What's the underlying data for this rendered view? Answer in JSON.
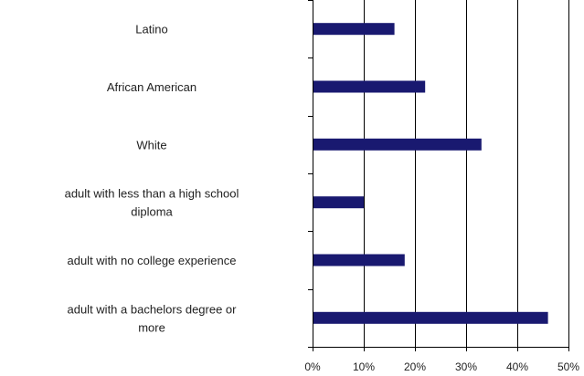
{
  "chart_data": {
    "type": "bar",
    "orientation": "horizontal",
    "categories": [
      [
        "Latino"
      ],
      [
        "African American"
      ],
      [
        "White"
      ],
      [
        "adult with less than a high school",
        "diploma"
      ],
      [
        "adult with no college experience"
      ],
      [
        "adult with a bachelors degree or",
        "more"
      ]
    ],
    "values": [
      16,
      22,
      33,
      10,
      18,
      46
    ],
    "value_unit": "%",
    "xlim": [
      0,
      50
    ],
    "xticks": [
      0,
      10,
      20,
      30,
      40,
      50
    ],
    "xtick_labels": [
      "0%",
      "10%",
      "20%",
      "30%",
      "40%",
      "50%"
    ],
    "grid": "vertical",
    "bar_color": "#191970",
    "title": "",
    "xlabel": "",
    "ylabel": ""
  }
}
